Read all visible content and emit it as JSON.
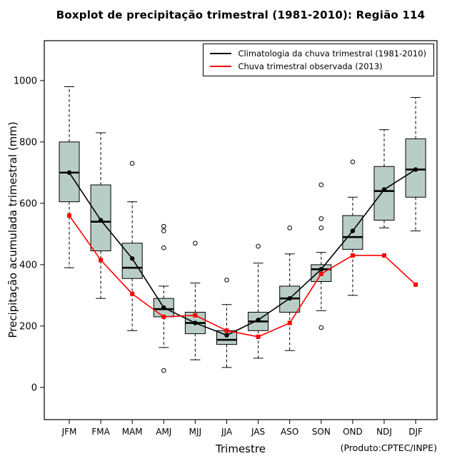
{
  "chart_data": {
    "type": "boxplot",
    "title": "Boxplot de precipitação trimestral (1981-2010): Região 114",
    "xlabel": "Trimestre",
    "ylabel": "Precipitação acumulada trimestral (mm)",
    "annotation": "(Produto:CPTEC/INPE)",
    "categories": [
      "JFM",
      "FMA",
      "MAM",
      "AMJ",
      "MJJ",
      "JJA",
      "JAS",
      "ASO",
      "SON",
      "OND",
      "NDJ",
      "DJF"
    ],
    "yticks": [
      0,
      200,
      400,
      600,
      800,
      1000
    ],
    "ylim": [
      -105,
      1130
    ],
    "grid": false,
    "legend_position": "top-right",
    "box_fill": "#b9cdc7",
    "boxes": [
      {
        "low": 390,
        "q1": 605,
        "median": 700,
        "q3": 800,
        "high": 980,
        "outliers": []
      },
      {
        "low": 290,
        "q1": 445,
        "median": 540,
        "q3": 660,
        "high": 830,
        "outliers": []
      },
      {
        "low": 185,
        "q1": 355,
        "median": 390,
        "q3": 470,
        "high": 605,
        "outliers": [
          730
        ]
      },
      {
        "low": 130,
        "q1": 230,
        "median": 255,
        "q3": 290,
        "high": 330,
        "outliers": [
          525,
          510,
          455,
          55
        ]
      },
      {
        "low": 90,
        "q1": 175,
        "median": 210,
        "q3": 245,
        "high": 340,
        "outliers": [
          470
        ]
      },
      {
        "low": 65,
        "q1": 140,
        "median": 155,
        "q3": 185,
        "high": 270,
        "outliers": [
          350
        ]
      },
      {
        "low": 95,
        "q1": 185,
        "median": 215,
        "q3": 245,
        "high": 405,
        "outliers": [
          460
        ]
      },
      {
        "low": 120,
        "q1": 245,
        "median": 290,
        "q3": 330,
        "high": 435,
        "outliers": [
          520
        ]
      },
      {
        "low": 250,
        "q1": 345,
        "median": 385,
        "q3": 400,
        "high": 440,
        "outliers": [
          660,
          550,
          520,
          195
        ]
      },
      {
        "low": 300,
        "q1": 450,
        "median": 490,
        "q3": 560,
        "high": 620,
        "outliers": [
          735
        ]
      },
      {
        "low": 520,
        "q1": 545,
        "median": 640,
        "q3": 720,
        "high": 840,
        "outliers": []
      },
      {
        "low": 510,
        "q1": 620,
        "median": 710,
        "q3": 810,
        "high": 945,
        "outliers": []
      }
    ],
    "series": [
      {
        "name": "Climatologia da chuva trimestral (1981-2010)",
        "color": "#000000",
        "marker": "circle",
        "values": [
          700,
          545,
          420,
          260,
          210,
          170,
          220,
          290,
          385,
          510,
          645,
          710
        ]
      },
      {
        "name": "Chuva trimestral observada (2013)",
        "color": "#ff0000",
        "marker": "square",
        "values": [
          560,
          415,
          305,
          230,
          235,
          185,
          165,
          210,
          370,
          430,
          430,
          335
        ]
      }
    ]
  }
}
